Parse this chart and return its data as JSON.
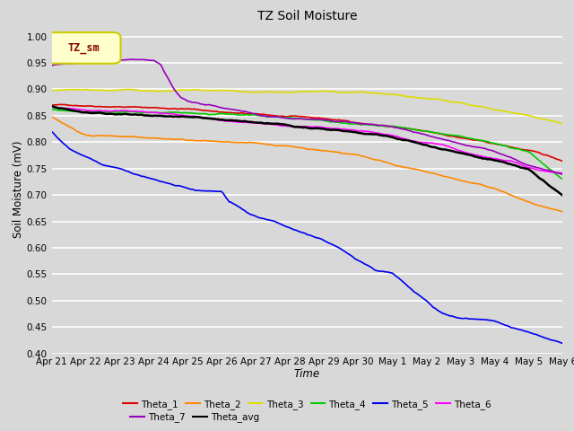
{
  "title": "TZ Soil Moisture",
  "ylabel": "Soil Moisture (mV)",
  "xlabel": "Time",
  "legend_title": "TZ_sm",
  "ylim": [
    0.4,
    1.02
  ],
  "bg_color": "#d8d8d8",
  "plot_bg_color": "#d8d8d8",
  "grid_color": "#ffffff",
  "legend_box_color": "#ffffcc",
  "legend_box_edge": "#cccc00",
  "legend_title_color": "#880000",
  "series_order": [
    "Theta_1",
    "Theta_2",
    "Theta_3",
    "Theta_4",
    "Theta_5",
    "Theta_6",
    "Theta_7",
    "Theta_avg"
  ],
  "legend_row1": [
    "Theta_1",
    "Theta_2",
    "Theta_3",
    "Theta_4",
    "Theta_5",
    "Theta_6"
  ],
  "legend_row2": [
    "Theta_7",
    "Theta_avg"
  ],
  "series": {
    "Theta_1": {
      "color": "#dd0000"
    },
    "Theta_2": {
      "color": "#ff8800"
    },
    "Theta_3": {
      "color": "#dddd00"
    },
    "Theta_4": {
      "color": "#00cc00"
    },
    "Theta_5": {
      "color": "#0000ee"
    },
    "Theta_6": {
      "color": "#ff00ff"
    },
    "Theta_7": {
      "color": "#9900bb"
    },
    "Theta_avg": {
      "color": "#000000"
    }
  },
  "x_tick_labels": [
    "Apr 21",
    "Apr 22",
    "Apr 23",
    "Apr 24",
    "Apr 25",
    "Apr 26",
    "Apr 27",
    "Apr 28",
    "Apr 29",
    "Apr 30",
    "May 1",
    "May 2",
    "May 3",
    "May 4",
    "May 5",
    "May 6"
  ],
  "n_points": 450
}
